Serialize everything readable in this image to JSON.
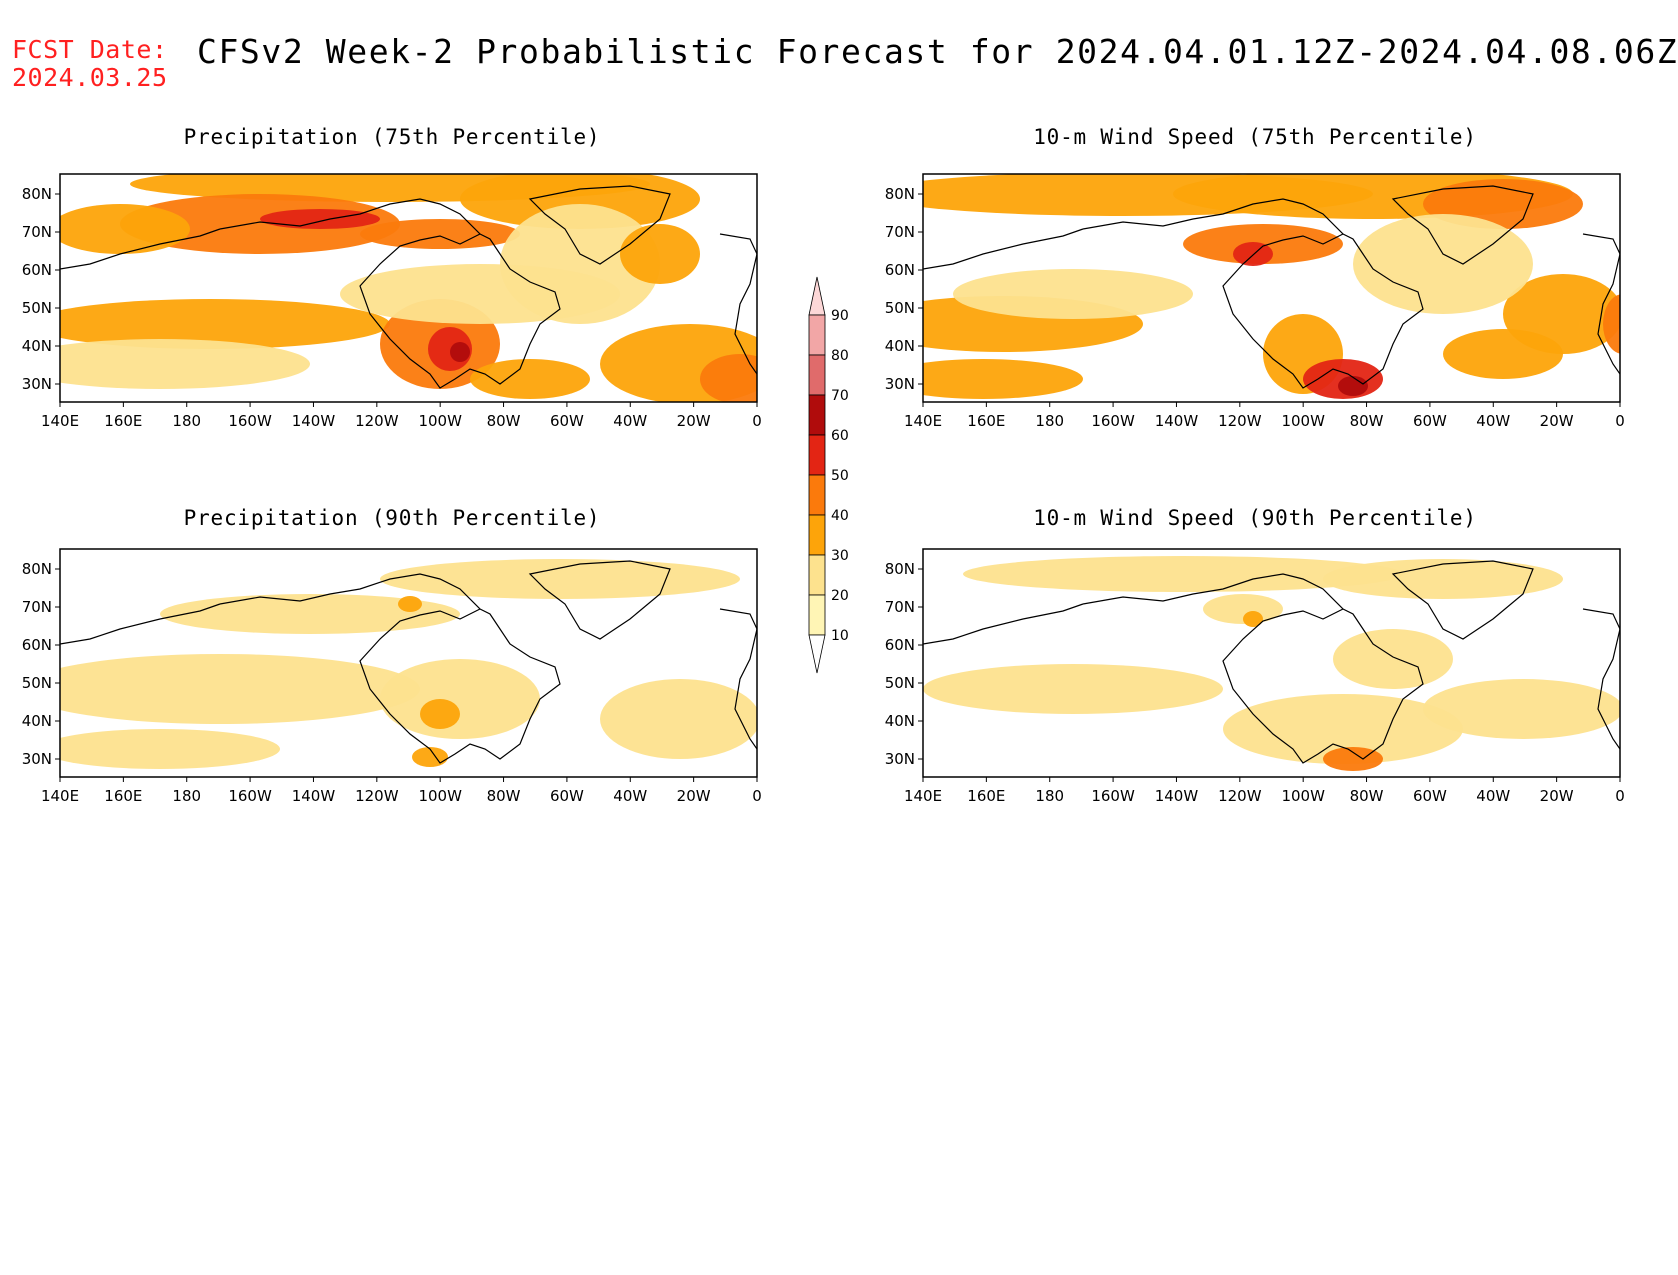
{
  "header": {
    "fcst_label": "FCST Date:",
    "fcst_date": "2024.03.25",
    "title": "CFSv2 Week-2 Probabilistic Forecast for 2024.04.01.12Z-2024.04.08.06Z"
  },
  "axes": {
    "lat_labels": [
      "80N",
      "70N",
      "60N",
      "50N",
      "40N",
      "30N"
    ],
    "lon_labels": [
      "140E",
      "160E",
      "180",
      "160W",
      "140W",
      "120W",
      "100W",
      "80W",
      "60W",
      "40W",
      "20W",
      "0"
    ]
  },
  "panels": [
    {
      "id": "precip-75",
      "title": "Precipitation (75th Percentile)"
    },
    {
      "id": "wind-75",
      "title": "10-m Wind Speed (75th Percentile)"
    },
    {
      "id": "precip-90",
      "title": "Precipitation (90th Percentile)"
    },
    {
      "id": "wind-90",
      "title": "10-m Wind Speed (90th Percentile)"
    }
  ],
  "colorbar": {
    "levels": [
      10,
      20,
      30,
      40,
      50,
      60,
      70,
      80,
      90
    ],
    "colors": [
      "#fff5b5",
      "#fde28e",
      "#fda40a",
      "#fb7a0c",
      "#e32514",
      "#b00c0c",
      "#e06b6b",
      "#f2a6a6",
      "#fcd7d7"
    ]
  }
}
